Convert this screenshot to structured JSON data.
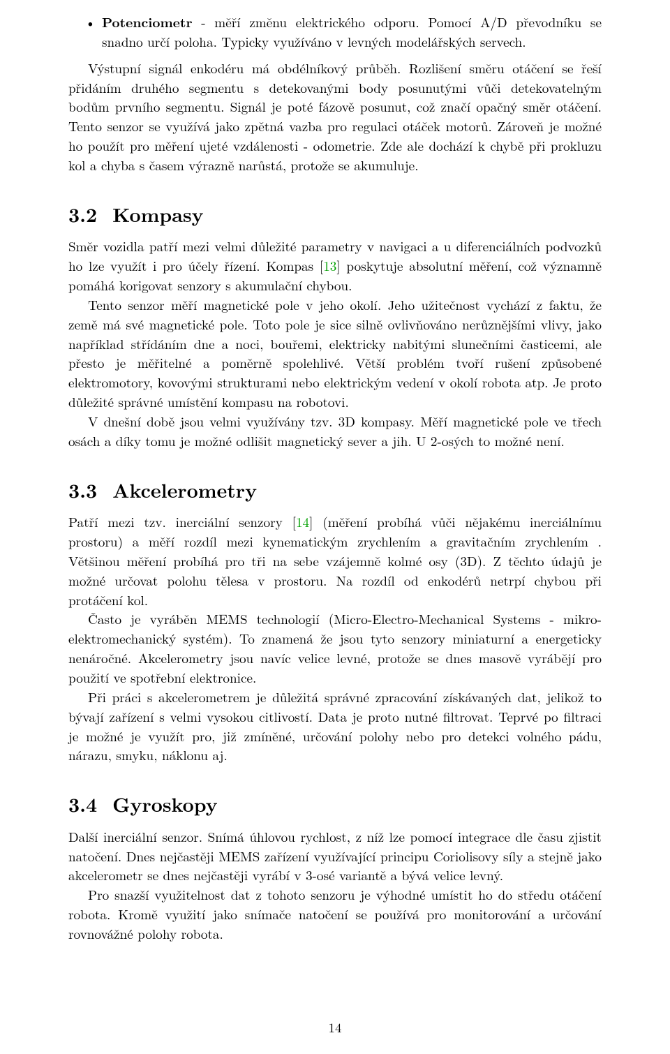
{
  "bullet": {
    "lead": "Potenciometr",
    "text": " - měří změnu elektrického odporu. Pomocí A/D převodníku se snadno určí poloha. Typicky využíváno v levných modelářských servech."
  },
  "para1": "Výstupní signál enkodéru má obdélníkový průběh. Rozlišení směru otáčení se řeší přidáním druhého segmentu s detekovanými body posunutými vůči detekovatelným bodům prvního segmentu. Signál je poté fázově posunut, což značí opačný směr otáčení. Tento senzor se využívá jako zpětná vazba pro regulaci otáček motorů. Zároveň je možné ho použít pro měření ujeté vzdálenosti - odometrie. Zde ale dochází k chybě při prokluzu kol a chyba s časem výrazně narůstá, protože se akumuluje.",
  "sec32": {
    "num": "3.2",
    "title": "Kompasy"
  },
  "p32a_pre": "Směr vozidla patří mezi velmi důležité parametry v navigaci a u diferenciálních podvozků ho lze využít i pro účely řízení. Kompas [",
  "cite13": "13",
  "p32a_post": "] poskytuje absolutní měření, což významně pomáhá korigovat senzory s akumulační chybou.",
  "p32b": "Tento senzor měří magnetické pole v jeho okolí. Jeho užitečnost vychází z faktu, že země má své magnetické pole. Toto pole je sice silně ovlivňováno nerůznějšími vlivy, jako například střídáním dne a noci, bouřemi, elektricky nabitými slunečními časticemi, ale přesto je měřitelné a poměrně spolehlivé. Větší problém tvoří rušení způsobené elektromotory, kovovými strukturami nebo elektrickým vedení v okolí robota atp. Je proto důležité správné umístění kompasu na robotovi.",
  "p32c": "V dnešní době jsou velmi využívány tzv. 3D kompasy. Měří magnetické pole ve třech osách a díky tomu je možné odlišit magnetický sever a jih. U 2-osých to možné není.",
  "sec33": {
    "num": "3.3",
    "title": "Akcelerometry"
  },
  "p33a_pre": "Patří mezi tzv. inerciální senzory [",
  "cite14": "14",
  "p33a_post": "] (měření probíhá vůči nějakému inerciálnímu prostoru) a měří rozdíl mezi kynematickým zrychlením a gravitačním zrychlením . Většinou měření probíhá pro tři na sebe vzájemně kolmé osy (3D). Z těchto údajů je možné určovat polohu tělesa v prostoru. Na rozdíl od enkodérů netrpí chybou při protáčení kol.",
  "p33b": "Často je vyráběn MEMS technologií (Micro-Electro-Mechanical Systems - mikro-elektromechanický systém). To znamená že jsou tyto senzory miniaturní a energeticky nenáročné. Akcelerometry jsou navíc velice levné, protože se dnes masově vyrábějí pro použití ve spotřební elektronice.",
  "p33c": "Při práci s akcelerometrem je důležitá správné zpracování získávaných dat, jelikož to bývají zařízení s velmi vysokou citlivostí. Data je proto nutné filtrovat. Teprvé po filtraci je možné je využít pro, již zmíněné, určování polohy nebo pro detekci volného pádu, nárazu, smyku, náklonu aj.",
  "sec34": {
    "num": "3.4",
    "title": "Gyroskopy"
  },
  "p34a": "Další inerciální senzor. Snímá úhlovou rychlost, z níž lze pomocí integrace dle času zjistit natočení. Dnes nejčastěji MEMS zařízení využívající principu Coriolisovy síly a stejně jako akcelerometr se dnes nejčastěji vyrábí v 3-osé variantě a bývá velice levný.",
  "p34b": "Pro snazší využitelnost dat z tohoto senzoru je výhodné umístit ho do středu otáčení robota. Kromě využití jako snímače natočení se používá pro monitorování a určování rovnovážné polohy robota.",
  "pagenum": "14"
}
